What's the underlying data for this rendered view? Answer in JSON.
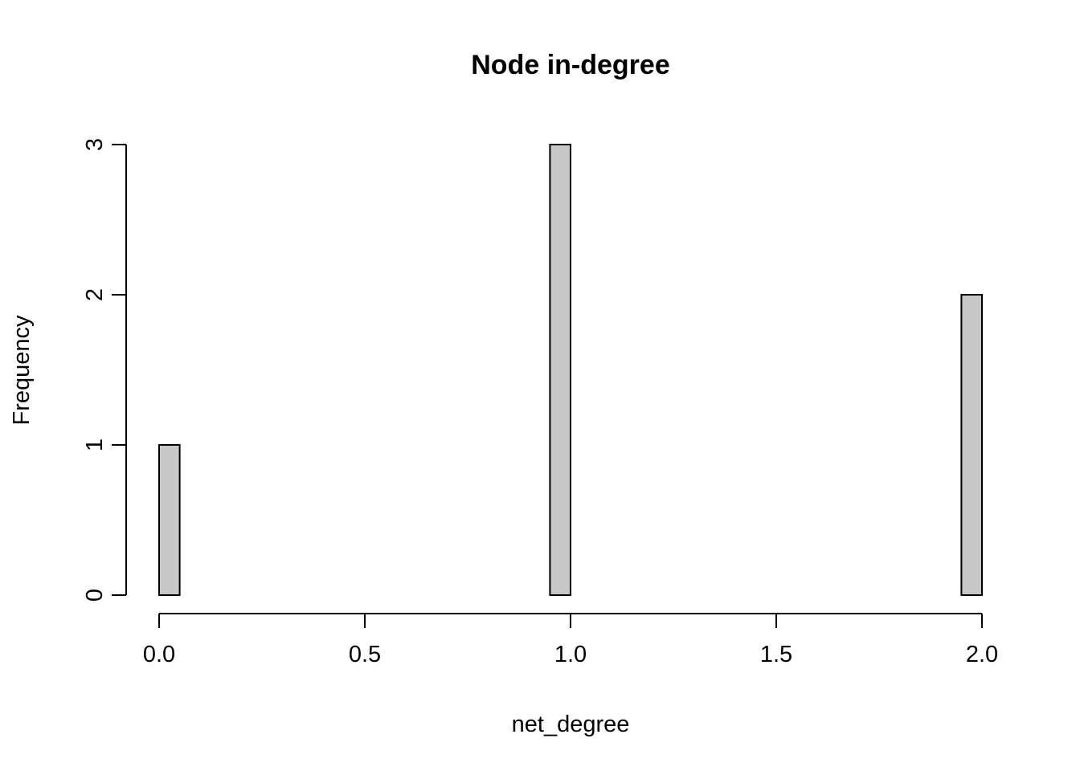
{
  "chart_data": {
    "type": "bar",
    "title": "Node in-degree",
    "xlabel": "net_degree",
    "ylabel": "Frequency",
    "bins": [
      {
        "x0": 0.0,
        "x1": 0.05,
        "count": 1
      },
      {
        "x0": 0.05,
        "x1": 0.1,
        "count": 0
      },
      {
        "x0": 0.1,
        "x1": 0.15,
        "count": 0
      },
      {
        "x0": 0.15,
        "x1": 0.2,
        "count": 0
      },
      {
        "x0": 0.2,
        "x1": 0.25,
        "count": 0
      },
      {
        "x0": 0.25,
        "x1": 0.3,
        "count": 0
      },
      {
        "x0": 0.3,
        "x1": 0.35,
        "count": 0
      },
      {
        "x0": 0.35,
        "x1": 0.4,
        "count": 0
      },
      {
        "x0": 0.4,
        "x1": 0.45,
        "count": 0
      },
      {
        "x0": 0.45,
        "x1": 0.5,
        "count": 0
      },
      {
        "x0": 0.5,
        "x1": 0.55,
        "count": 0
      },
      {
        "x0": 0.55,
        "x1": 0.6,
        "count": 0
      },
      {
        "x0": 0.6,
        "x1": 0.65,
        "count": 0
      },
      {
        "x0": 0.65,
        "x1": 0.7,
        "count": 0
      },
      {
        "x0": 0.7,
        "x1": 0.75,
        "count": 0
      },
      {
        "x0": 0.75,
        "x1": 0.8,
        "count": 0
      },
      {
        "x0": 0.8,
        "x1": 0.85,
        "count": 0
      },
      {
        "x0": 0.85,
        "x1": 0.9,
        "count": 0
      },
      {
        "x0": 0.9,
        "x1": 0.95,
        "count": 0
      },
      {
        "x0": 0.95,
        "x1": 1.0,
        "count": 3
      },
      {
        "x0": 1.0,
        "x1": 1.05,
        "count": 0
      },
      {
        "x0": 1.05,
        "x1": 1.1,
        "count": 0
      },
      {
        "x0": 1.1,
        "x1": 1.15,
        "count": 0
      },
      {
        "x0": 1.15,
        "x1": 1.2,
        "count": 0
      },
      {
        "x0": 1.2,
        "x1": 1.25,
        "count": 0
      },
      {
        "x0": 1.25,
        "x1": 1.3,
        "count": 0
      },
      {
        "x0": 1.3,
        "x1": 1.35,
        "count": 0
      },
      {
        "x0": 1.35,
        "x1": 1.4,
        "count": 0
      },
      {
        "x0": 1.4,
        "x1": 1.45,
        "count": 0
      },
      {
        "x0": 1.45,
        "x1": 1.5,
        "count": 0
      },
      {
        "x0": 1.5,
        "x1": 1.55,
        "count": 0
      },
      {
        "x0": 1.55,
        "x1": 1.6,
        "count": 0
      },
      {
        "x0": 1.6,
        "x1": 1.65,
        "count": 0
      },
      {
        "x0": 1.65,
        "x1": 1.7,
        "count": 0
      },
      {
        "x0": 1.7,
        "x1": 1.75,
        "count": 0
      },
      {
        "x0": 1.75,
        "x1": 1.8,
        "count": 0
      },
      {
        "x0": 1.8,
        "x1": 1.85,
        "count": 0
      },
      {
        "x0": 1.85,
        "x1": 1.9,
        "count": 0
      },
      {
        "x0": 1.9,
        "x1": 1.95,
        "count": 0
      },
      {
        "x0": 1.95,
        "x1": 2.0,
        "count": 2
      }
    ],
    "xlim": [
      0,
      2
    ],
    "ylim": [
      0,
      3
    ],
    "x_ticks": [
      0.0,
      0.5,
      1.0,
      1.5,
      2.0
    ],
    "x_tick_labels": [
      "0.0",
      "0.5",
      "1.0",
      "1.5",
      "2.0"
    ],
    "y_ticks": [
      0,
      1,
      2,
      3
    ],
    "y_tick_labels": [
      "0",
      "1",
      "2",
      "3"
    ],
    "grid": false,
    "colors": {
      "bar_fill": "#c8c8c8",
      "bar_stroke": "#000000",
      "axis": "#000000",
      "background": "#ffffff"
    }
  }
}
